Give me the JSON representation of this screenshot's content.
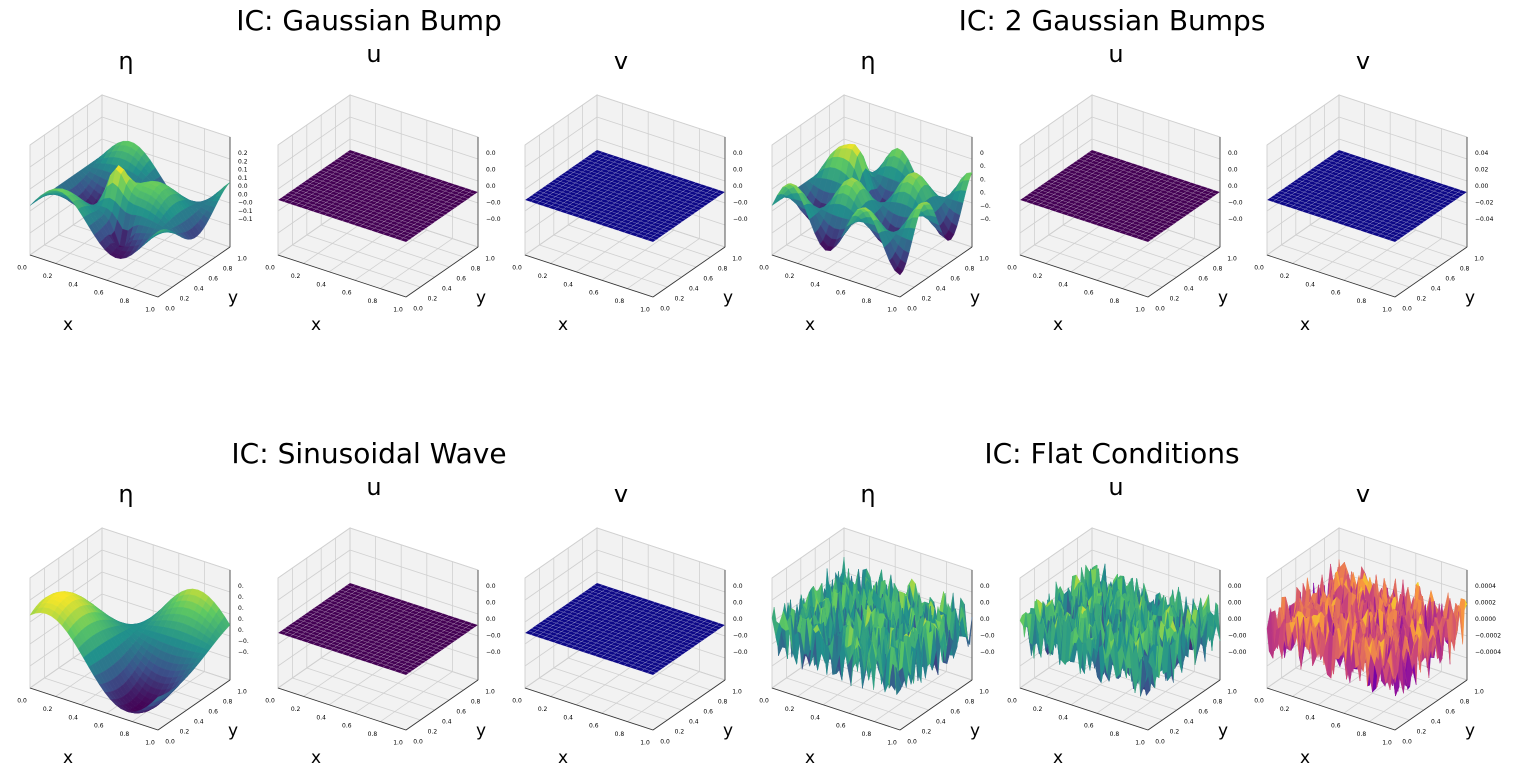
{
  "xlabel": "x",
  "ylabel": "y",
  "xticks": [
    "0.0",
    "0.2",
    "0.4",
    "0.6",
    "0.8",
    "1.0"
  ],
  "yticks": [
    "0.0",
    "0.2",
    "0.4",
    "0.6",
    "0.8",
    "1.0"
  ],
  "groups": [
    {
      "title": "IC: Gaussian Bump",
      "panels": [
        {
          "title": "η",
          "surface": "bump",
          "colormap": "viridis",
          "zticks": [
            "0.2",
            "0.2",
            "0.1",
            "0.1",
            "0.0",
            "0.0",
            "−0.0",
            "−0.1",
            "−0.1"
          ]
        },
        {
          "title": "u",
          "surface": "flat",
          "colormap": "viridis",
          "zticks": [
            "0.0",
            "0.0",
            "0.0",
            "−0.0",
            "−0.0"
          ]
        },
        {
          "title": "v",
          "surface": "flat",
          "colormap": "plasma",
          "zticks": [
            "0.0",
            "0.0",
            "0.0",
            "−0.0",
            "−0.0"
          ]
        }
      ]
    },
    {
      "title": "IC: 2 Gaussian Bumps",
      "panels": [
        {
          "title": "η",
          "surface": "bumps2",
          "colormap": "viridis",
          "zticks": [
            "0",
            "0.",
            "0.",
            "0.",
            "−0.",
            "−0."
          ]
        },
        {
          "title": "u",
          "surface": "flat",
          "colormap": "viridis",
          "zticks": [
            "0.0",
            "0.0",
            "0.0",
            "−0.0",
            "−0.0"
          ]
        },
        {
          "title": "v",
          "surface": "flat",
          "colormap": "plasma",
          "zticks": [
            "0.04",
            "0.02",
            "0.00",
            "−0.02",
            "−0.04"
          ]
        }
      ]
    },
    {
      "title": "IC: Sinusoidal Wave",
      "panels": [
        {
          "title": "η",
          "surface": "wave",
          "colormap": "viridis",
          "zticks": [
            "0.",
            "0.",
            "0.",
            "0.",
            "0.",
            "−0.",
            "−0."
          ]
        },
        {
          "title": "u",
          "surface": "flat",
          "colormap": "viridis",
          "zticks": [
            "0.0",
            "0.0",
            "0.0",
            "−0.0",
            "−0.0"
          ]
        },
        {
          "title": "v",
          "surface": "flat",
          "colormap": "plasma",
          "zticks": [
            "0.0",
            "0.0",
            "0.0",
            "−0.0",
            "−0.0"
          ]
        }
      ]
    },
    {
      "title": "IC: Flat Conditions",
      "panels": [
        {
          "title": "η",
          "surface": "noise",
          "colormap": "viridis",
          "zticks": [
            "0.0",
            "0.0",
            "0.0",
            "−0.0",
            "−0.0"
          ]
        },
        {
          "title": "u",
          "surface": "noise",
          "colormap": "viridis",
          "zticks": [
            "0.00",
            "0.00",
            "0.00",
            "−0.00",
            "−0.00"
          ]
        },
        {
          "title": "v",
          "surface": "noise",
          "colormap": "plasma",
          "zticks": [
            "0.0004",
            "0.0002",
            "0.0000",
            "−0.0002",
            "−0.0004"
          ]
        }
      ]
    }
  ]
}
